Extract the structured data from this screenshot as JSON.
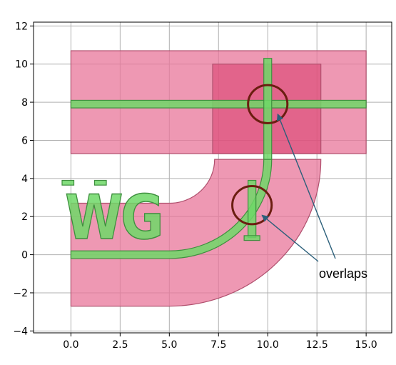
{
  "chart_data": {
    "type": "diagram-plot",
    "title": "",
    "xlabel": "",
    "ylabel": "",
    "xlim": [
      -1.9,
      16.3
    ],
    "ylim": [
      -4.1,
      12.2
    ],
    "xticks": [
      0.0,
      2.5,
      5.0,
      7.5,
      10.0,
      12.5,
      15.0
    ],
    "xtick_labels": [
      "0.0",
      "2.5",
      "5.0",
      "7.5",
      "10.0",
      "12.5",
      "15.0"
    ],
    "yticks": [
      -4,
      -2,
      0,
      2,
      4,
      6,
      8,
      10,
      12
    ],
    "ytick_labels": [
      "−4",
      "−2",
      "0",
      "2",
      "4",
      "6",
      "8",
      "10",
      "12"
    ],
    "grid": true,
    "colors": {
      "pink_fill": "#e8759a",
      "pink_dark": "#d83a6a",
      "pink_edge": "#b0506e",
      "green_fill": "#6fd867",
      "green_edge": "#3f8f3f",
      "circle": "#6b1e10",
      "arrow": "#2b5f7a"
    },
    "layers": {
      "top_bar": {
        "x": [
          0,
          15.0
        ],
        "y": [
          5.3,
          10.7
        ]
      },
      "dark_overlap_block": {
        "x": [
          7.2,
          12.7
        ],
        "y": [
          5.3,
          10.0
        ]
      },
      "bend": {
        "center": [
          5.0,
          5.0
        ],
        "outer_radius": 7.7,
        "inner_radius": 2.3,
        "straight_from_x": 0,
        "bottom_y": -2.7
      },
      "horizontal_waveguide": {
        "x": [
          0,
          15.0
        ],
        "y": 7.9,
        "width": 0.4
      },
      "vertical_waveguide": {
        "x": 10.0,
        "y": [
          5.0,
          10.3
        ],
        "width": 0.4
      },
      "bend_waveguide": {
        "center": [
          5.0,
          5.0
        ],
        "radius": 5.0,
        "width": 0.4,
        "x_from": 0
      },
      "text_label": "WG1"
    },
    "overlap_circles": [
      {
        "center": [
          10.0,
          7.9
        ],
        "radius": 1.0
      },
      {
        "center": [
          9.2,
          2.6
        ],
        "radius": 1.0
      }
    ],
    "annotation": {
      "text": "overlaps",
      "arrows_to": [
        [
          10.0,
          7.9
        ],
        [
          9.2,
          2.6
        ]
      ]
    }
  }
}
